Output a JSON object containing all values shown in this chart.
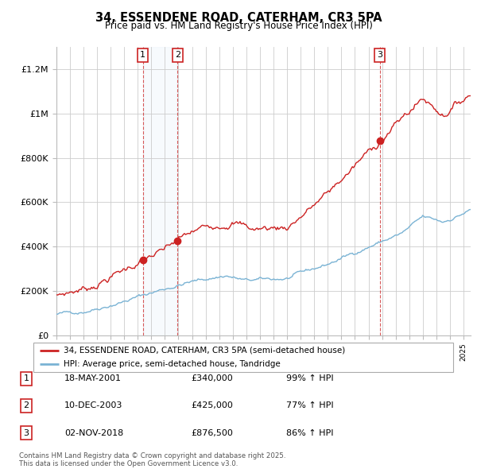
{
  "title": "34, ESSENDENE ROAD, CATERHAM, CR3 5PA",
  "subtitle": "Price paid vs. HM Land Registry's House Price Index (HPI)",
  "ylim": [
    0,
    1300000
  ],
  "yticks": [
    0,
    200000,
    400000,
    600000,
    800000,
    1000000,
    1200000
  ],
  "ytick_labels": [
    "£0",
    "£200K",
    "£400K",
    "£600K",
    "£800K",
    "£1M",
    "£1.2M"
  ],
  "hpi_color": "#7ab3d4",
  "price_color": "#cc2222",
  "sale_marker_color": "#cc2222",
  "sale1_date": 2001.38,
  "sale1_price": 340000,
  "sale1_label": "1",
  "sale2_date": 2003.94,
  "sale2_price": 425000,
  "sale2_label": "2",
  "sale3_date": 2018.84,
  "sale3_price": 876500,
  "sale3_label": "3",
  "legend_house_label": "34, ESSENDENE ROAD, CATERHAM, CR3 5PA (semi-detached house)",
  "legend_hpi_label": "HPI: Average price, semi-detached house, Tandridge",
  "table_entries": [
    {
      "num": "1",
      "date": "18-MAY-2001",
      "price": "£340,000",
      "pct": "99% ↑ HPI"
    },
    {
      "num": "2",
      "date": "10-DEC-2003",
      "price": "£425,000",
      "pct": "77% ↑ HPI"
    },
    {
      "num": "3",
      "date": "02-NOV-2018",
      "price": "£876,500",
      "pct": "86% ↑ HPI"
    }
  ],
  "footer": "Contains HM Land Registry data © Crown copyright and database right 2025.\nThis data is licensed under the Open Government Licence v3.0.",
  "xmin": 1995,
  "xmax": 2025.5
}
